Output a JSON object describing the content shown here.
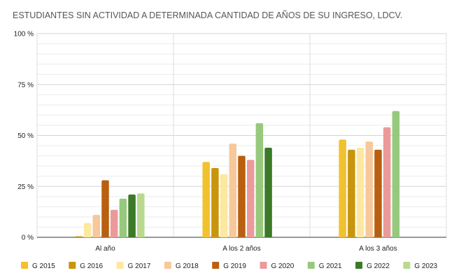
{
  "chart_data": {
    "type": "bar",
    "title": "ESTUDIANTES SIN ACTIVIDAD A DETERMINADA CANTIDAD DE AÑOS DE SU INGRESO, LDCV.",
    "xlabel": "",
    "ylabel": "",
    "ylim": [
      0,
      100
    ],
    "yticks": [
      "0 %",
      "25 %",
      "50 %",
      "75 %",
      "100 %"
    ],
    "ytick_values": [
      0,
      25,
      50,
      75,
      100
    ],
    "grid": true,
    "legend_position": "bottom",
    "categories": [
      "Al año",
      "A los 2 años",
      "A los 3 años"
    ],
    "series": [
      {
        "name": "G 2015",
        "color": "#f2c12e",
        "values": [
          null,
          37,
          48
        ]
      },
      {
        "name": "G 2016",
        "color": "#c9950c",
        "values": [
          0.5,
          34,
          43
        ]
      },
      {
        "name": "G 2017",
        "color": "#fce8a0",
        "values": [
          7,
          31,
          44
        ]
      },
      {
        "name": "G 2018",
        "color": "#f6c89a",
        "values": [
          11,
          46,
          47
        ]
      },
      {
        "name": "G 2019",
        "color": "#b8600f",
        "values": [
          28,
          40,
          43
        ]
      },
      {
        "name": "G 2020",
        "color": "#eb9a9a",
        "values": [
          13.5,
          38,
          54
        ]
      },
      {
        "name": "G 2021",
        "color": "#96c97d",
        "values": [
          19,
          56,
          62
        ]
      },
      {
        "name": "G 2022",
        "color": "#3b7a26",
        "values": [
          21,
          44,
          null
        ]
      },
      {
        "name": "G 2023",
        "color": "#b9d98f",
        "values": [
          21.5,
          null,
          null
        ]
      }
    ]
  }
}
